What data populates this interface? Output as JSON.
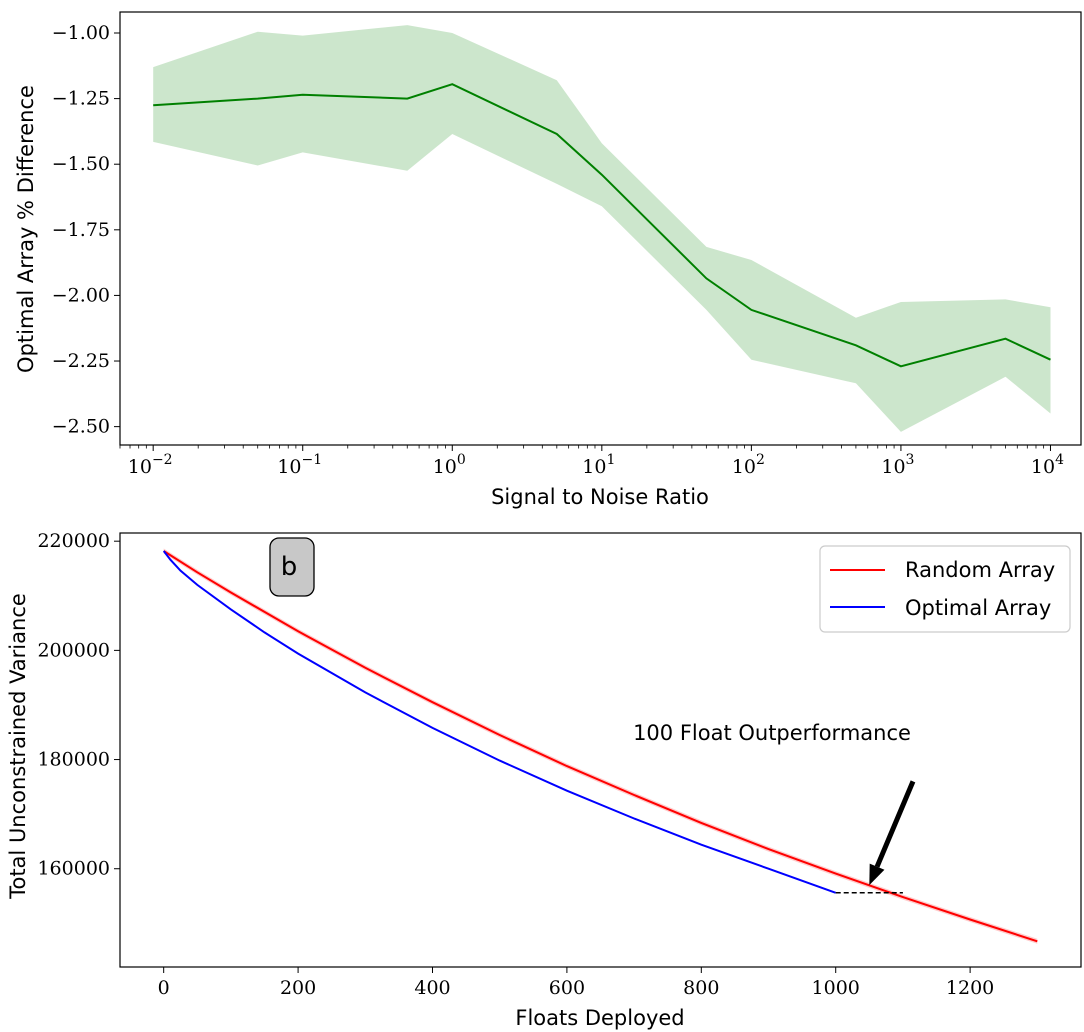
{
  "chart_data": [
    {
      "type": "line",
      "xscale": "log",
      "xlabel": "Signal to Noise Ratio",
      "ylabel": "Optimal Array % Difference",
      "xlim": [
        0.006,
        16000
      ],
      "ylim": [
        -2.57,
        -0.92
      ],
      "x_ticks": [
        0.01,
        0.1,
        1,
        10,
        100,
        1000,
        10000
      ],
      "x_tick_labels": [
        {
          "base": "10",
          "exp": "−2"
        },
        {
          "base": "10",
          "exp": "−1"
        },
        {
          "base": "10",
          "exp": "0"
        },
        {
          "base": "10",
          "exp": "1"
        },
        {
          "base": "10",
          "exp": "2"
        },
        {
          "base": "10",
          "exp": "3"
        },
        {
          "base": "10",
          "exp": "4"
        }
      ],
      "y_ticks": [
        -1.0,
        -1.25,
        -1.5,
        -1.75,
        -2.0,
        -2.25,
        -2.5
      ],
      "y_tick_labels": [
        "−1.00",
        "−1.25",
        "−1.50",
        "−1.75",
        "−2.00",
        "−2.25",
        "−2.50"
      ],
      "series": [
        {
          "color": "#008000",
          "band_color": "#008000",
          "x": [
            0.01,
            0.05,
            0.1,
            0.5,
            1,
            5,
            10,
            50,
            100,
            500,
            1000,
            5000,
            10000
          ],
          "y": [
            -1.275,
            -1.25,
            -1.235,
            -1.25,
            -1.195,
            -1.385,
            -1.54,
            -1.935,
            -2.055,
            -2.19,
            -2.27,
            -2.165,
            -2.245
          ],
          "y_upper": [
            -1.13,
            -0.995,
            -1.01,
            -0.97,
            -1.0,
            -1.18,
            -1.42,
            -1.815,
            -1.865,
            -2.085,
            -2.025,
            -2.015,
            -2.045
          ],
          "y_lower": [
            -1.415,
            -1.505,
            -1.455,
            -1.525,
            -1.385,
            -1.575,
            -1.66,
            -2.055,
            -2.245,
            -2.335,
            -2.52,
            -2.31,
            -2.45
          ]
        }
      ]
    },
    {
      "type": "line",
      "xlabel": "Floats Deployed",
      "ylabel": "Total Unconstrained Variance",
      "xlim": [
        -65,
        1365
      ],
      "ylim": [
        142000,
        221500
      ],
      "x_ticks": [
        0,
        200,
        400,
        600,
        800,
        1000,
        1200
      ],
      "x_tick_labels": [
        "0",
        "200",
        "400",
        "600",
        "800",
        "1000",
        "1200"
      ],
      "y_ticks": [
        160000,
        180000,
        200000,
        220000
      ],
      "y_tick_labels": [
        "160000",
        "180000",
        "200000",
        "220000"
      ],
      "legend_position": "top-right",
      "panel_badge": "b",
      "series": [
        {
          "name": "Random Array",
          "color": "#ff0000",
          "x": [
            0,
            50,
            100,
            200,
            300,
            400,
            500,
            600,
            700,
            800,
            900,
            1000,
            1100,
            1200,
            1300
          ],
          "y": [
            218200,
            214300,
            210600,
            203500,
            196800,
            190500,
            184500,
            178800,
            173500,
            168400,
            163600,
            159100,
            154800,
            150700,
            146700
          ]
        },
        {
          "name": "Optimal Array",
          "color": "#0000ff",
          "x": [
            0,
            10,
            25,
            50,
            100,
            150,
            200,
            300,
            400,
            500,
            600,
            700,
            800,
            900,
            1000
          ],
          "y": [
            218200,
            216600,
            214600,
            212000,
            207500,
            203300,
            199400,
            192300,
            185800,
            179800,
            174300,
            169200,
            164400,
            160000,
            155600
          ]
        }
      ],
      "reference_line": {
        "x": [
          1000,
          1100
        ],
        "y": 155600,
        "style": "dashed",
        "color": "#000000"
      },
      "annotation": {
        "text": "100 Float Outperformance",
        "arrow_tip": [
          1050,
          157000
        ],
        "arrow_tail": [
          1115,
          176000
        ]
      }
    }
  ]
}
